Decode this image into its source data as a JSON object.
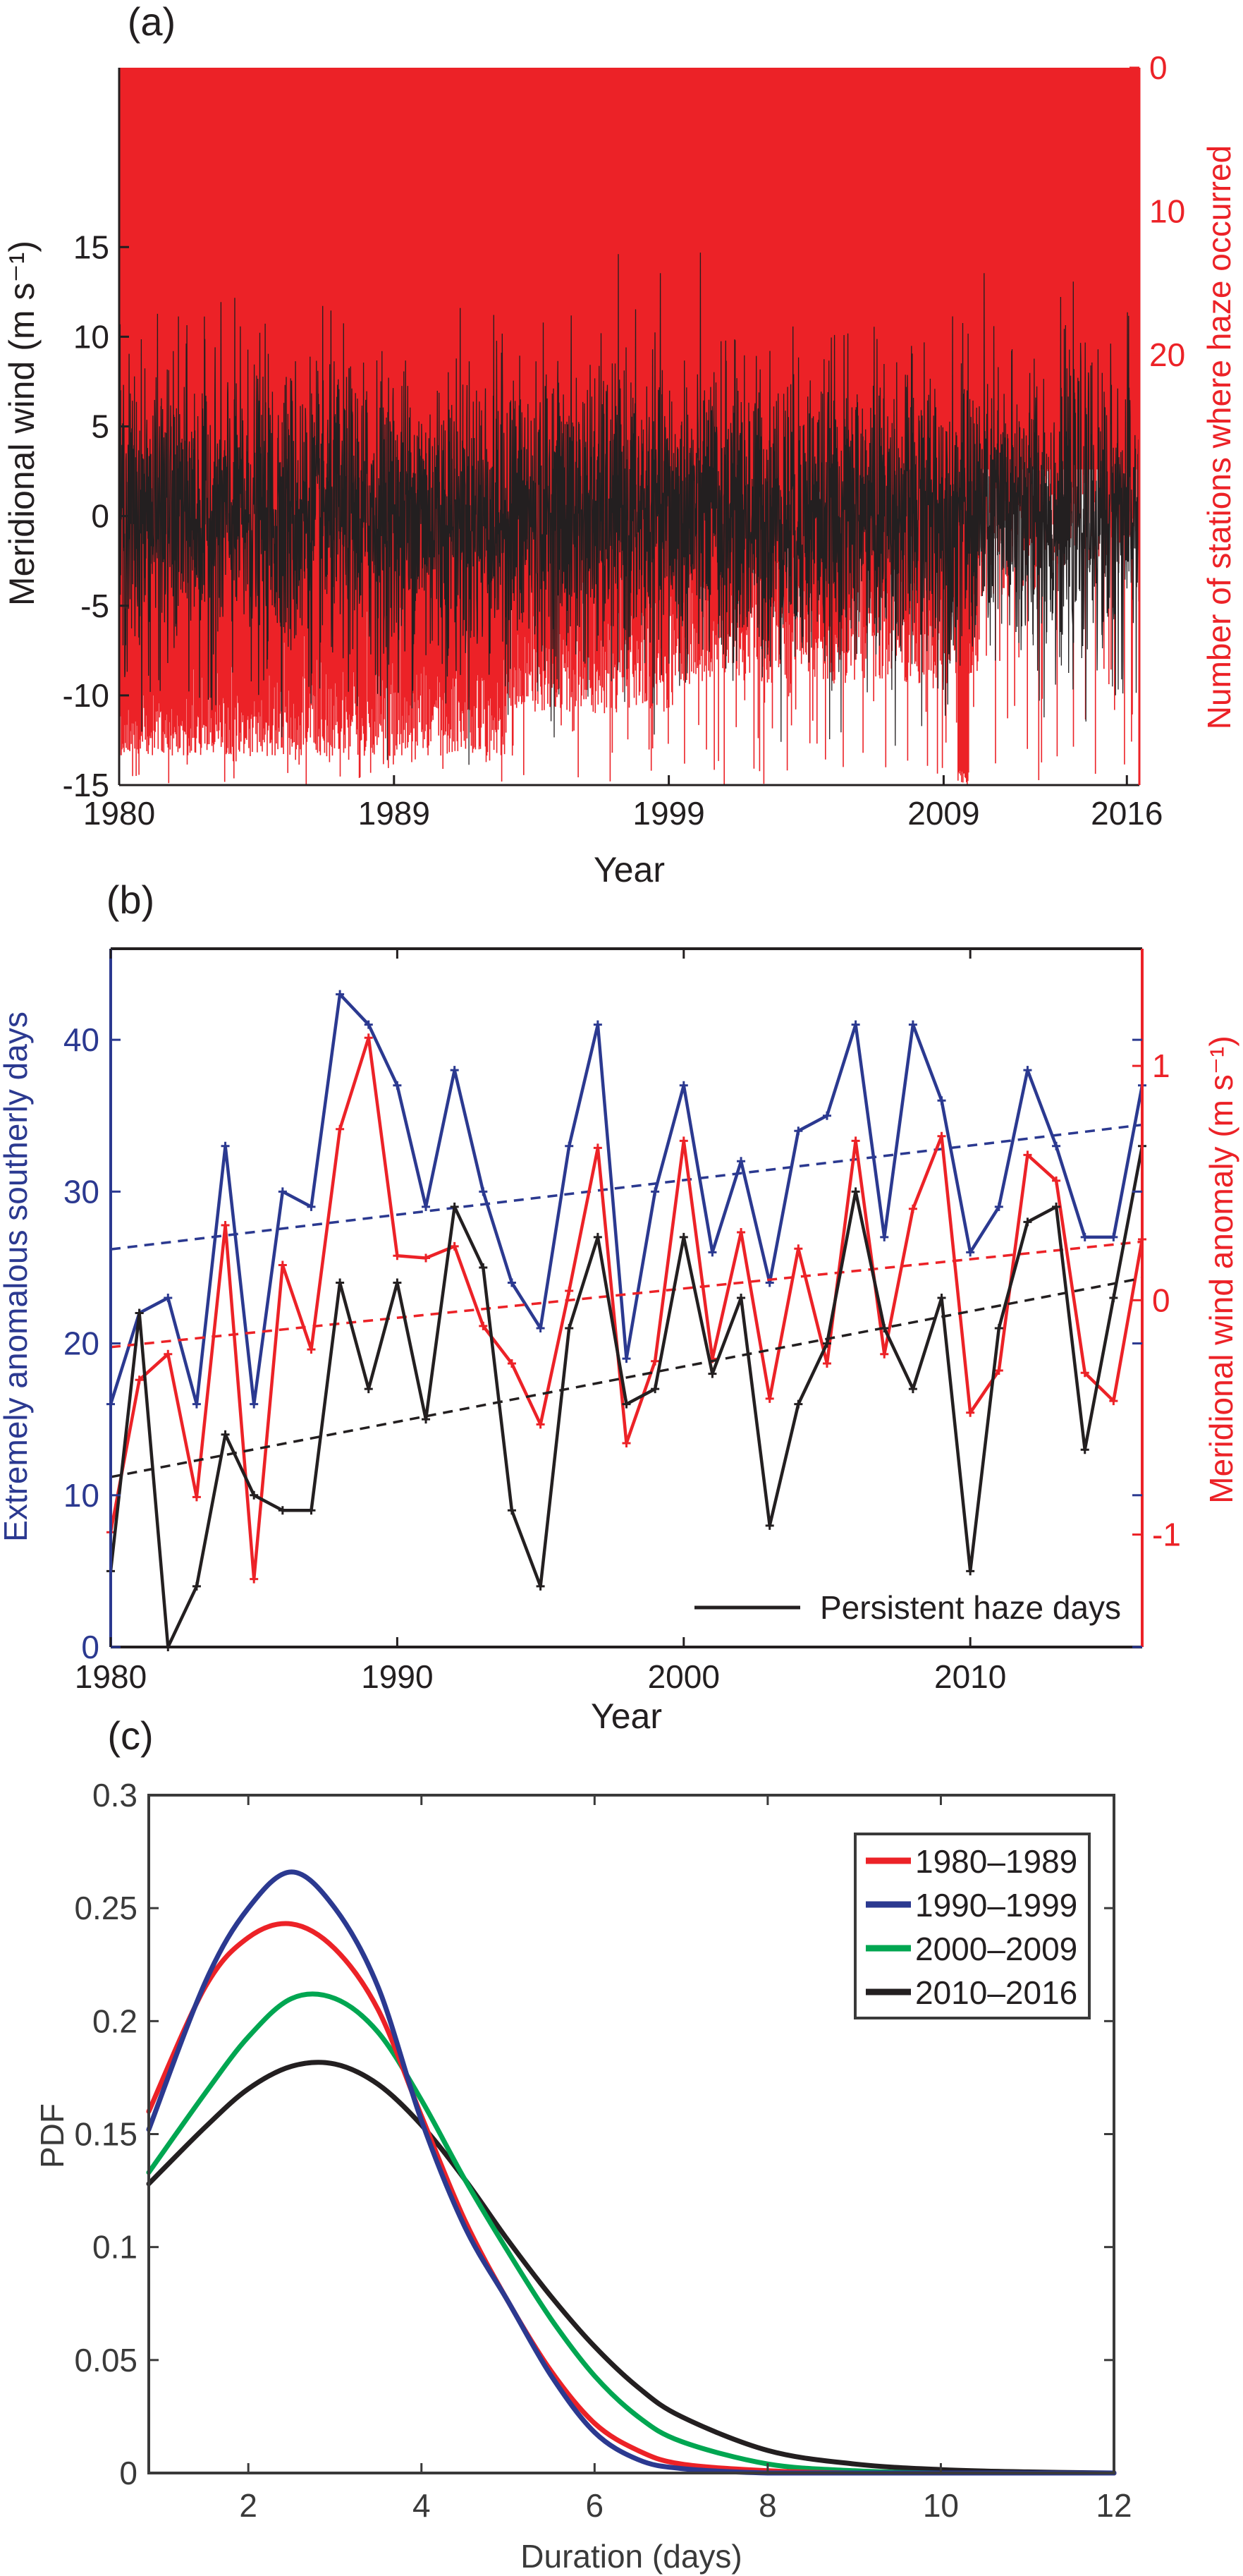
{
  "chart_data": [
    {
      "panel_label": "(a)",
      "type": "line",
      "xlabel": "Year",
      "ylabel": "Meridional wind (m s⁻¹)",
      "ylabel_right": "Number of stations where haze occurred",
      "xlim": [
        1980,
        2016.75
      ],
      "ylim": [
        -15,
        25
      ],
      "ylim_right": [
        0,
        50
      ],
      "right_axis_reversed": true,
      "x_ticks": [
        {
          "value": 1980,
          "label": "1980"
        },
        {
          "value": 1989.9,
          "label": "1989"
        },
        {
          "value": 1999.8,
          "label": "1999"
        },
        {
          "value": 2009.7,
          "label": "2009"
        },
        {
          "value": 2016.3,
          "label": "2016"
        }
      ],
      "y_ticks": [
        "-15",
        "-10",
        "-5",
        "0",
        "5",
        "10",
        "15"
      ],
      "y_ticks_right": [
        "0",
        "10",
        "20"
      ],
      "series": [
        {
          "kind": "daily line",
          "axis": "left",
          "color": "#231f20",
          "value_range": [
            -15,
            15
          ]
        },
        {
          "kind": "daily bars hanging from top",
          "axis": "right",
          "color": "#ec2227",
          "value_range": [
            0,
            20
          ]
        }
      ],
      "grid": false
    },
    {
      "panel_label": "(b)",
      "type": "line",
      "xlabel": "Year",
      "ylabel": "Extremely anomalous southerly days",
      "ylabel_right": "Meridional wind anomaly (m s⁻¹)",
      "xlim": [
        1980,
        2016
      ],
      "ylim": [
        0,
        46
      ],
      "ylim_right": [
        -1.48,
        1.5
      ],
      "x_ticks": [
        "1980",
        "1990",
        "2000",
        "2010"
      ],
      "y_ticks": [
        "0",
        "10",
        "20",
        "30",
        "40"
      ],
      "y_ticks_right": [
        "-1",
        "0",
        "1"
      ],
      "x": [
        1980,
        1981,
        1982,
        1983,
        1984,
        1985,
        1986,
        1987,
        1988,
        1989,
        1990,
        1991,
        1992,
        1993,
        1994,
        1995,
        1996,
        1997,
        1998,
        1999,
        2000,
        2001,
        2002,
        2003,
        2004,
        2005,
        2006,
        2007,
        2008,
        2009,
        2010,
        2011,
        2012,
        2013,
        2014,
        2015,
        2016
      ],
      "series": [
        {
          "axis": "left",
          "color": "#2b3990",
          "values": [
            16,
            22,
            23,
            16,
            33,
            16,
            30,
            29,
            43,
            41,
            37,
            29,
            38,
            30,
            24,
            21,
            33,
            41,
            19,
            30,
            37,
            26,
            32,
            24,
            34,
            35,
            41,
            27,
            41,
            36,
            26,
            29,
            38,
            33,
            27,
            27,
            37
          ],
          "trend": [
            26.2,
            34.4
          ]
        },
        {
          "axis": "right",
          "color": "#ec2227",
          "values": [
            -0.99,
            -0.34,
            -0.23,
            -0.84,
            0.32,
            -1.19,
            0.15,
            -0.21,
            0.73,
            1.12,
            0.19,
            0.18,
            0.23,
            -0.11,
            -0.27,
            -0.53,
            0.04,
            0.65,
            -0.61,
            -0.26,
            0.68,
            -0.25,
            0.29,
            -0.42,
            0.22,
            -0.27,
            0.68,
            -0.23,
            0.39,
            0.7,
            -0.48,
            -0.3,
            0.62,
            0.51,
            -0.31,
            -0.43,
            0.26
          ],
          "trend": [
            -0.2,
            0.25
          ]
        },
        {
          "name": "Persistent haze days",
          "axis": "left",
          "color": "#231f20",
          "values": [
            5,
            22,
            0,
            4,
            14,
            10,
            9,
            9,
            24,
            17,
            24,
            15,
            29,
            25,
            9,
            4,
            21,
            27,
            16,
            17,
            27,
            18,
            23,
            8,
            16,
            20,
            30,
            21,
            17,
            23,
            5,
            21,
            28,
            29,
            13,
            23,
            33
          ],
          "trend": [
            11.2,
            24.3
          ]
        }
      ],
      "legend": {
        "position": "bottom-right",
        "entries": [
          "Persistent haze days"
        ]
      },
      "grid": false
    },
    {
      "panel_label": "(c)",
      "type": "line",
      "xlabel": "Duration (days)",
      "ylabel": "PDF",
      "xlim": [
        0.85,
        12
      ],
      "ylim": [
        0,
        0.3
      ],
      "x_ticks": [
        "2",
        "4",
        "6",
        "8",
        "10",
        "12"
      ],
      "y_ticks": [
        "0",
        "0.05",
        "0.1",
        "0.15",
        "0.2",
        "0.25",
        "0.3"
      ],
      "x": [
        0.85,
        1.5,
        2,
        2.5,
        3,
        3.5,
        4,
        4.5,
        5,
        5.5,
        6,
        6.5,
        7,
        8,
        9,
        10,
        11,
        12
      ],
      "series": [
        {
          "name": "1980–1989",
          "color": "#ec2227",
          "values": [
            0.16,
            0.215,
            0.237,
            0.243,
            0.232,
            0.205,
            0.158,
            0.112,
            0.076,
            0.045,
            0.022,
            0.01,
            0.004,
            0.001,
            0,
            0,
            0,
            0
          ]
        },
        {
          "name": "1990–1999",
          "color": "#2b3990",
          "values": [
            0.152,
            0.217,
            0.25,
            0.266,
            0.25,
            0.215,
            0.156,
            0.109,
            0.076,
            0.043,
            0.018,
            0.006,
            0.002,
            0,
            0,
            0,
            0,
            0
          ]
        },
        {
          "name": "2000–2009",
          "color": "#00a651",
          "values": [
            0.133,
            0.168,
            0.193,
            0.21,
            0.21,
            0.195,
            0.165,
            0.13,
            0.098,
            0.068,
            0.043,
            0.025,
            0.014,
            0.004,
            0.001,
            0,
            0,
            0
          ]
        },
        {
          "name": "2010–2016",
          "color": "#231f20",
          "values": [
            0.128,
            0.153,
            0.17,
            0.18,
            0.181,
            0.172,
            0.154,
            0.13,
            0.103,
            0.078,
            0.056,
            0.038,
            0.025,
            0.01,
            0.004,
            0.0015,
            0.0005,
            0
          ]
        }
      ],
      "legend": {
        "position": "top-right",
        "entries": [
          "1980–1989",
          "1990–1999",
          "2000–2009",
          "2010–2016"
        ]
      },
      "grid": false
    }
  ]
}
